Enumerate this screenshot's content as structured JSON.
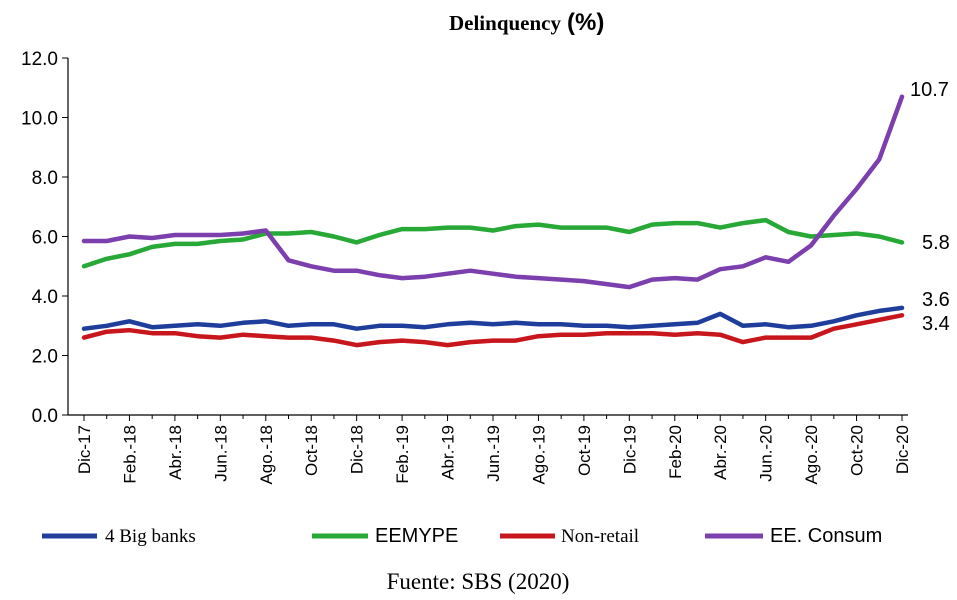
{
  "chart_data": {
    "type": "line",
    "title": "Delinquency",
    "title_unit": "(%)",
    "ylabel": "",
    "xlabel": "",
    "ylim": [
      0,
      12
    ],
    "y_ticks": [
      "0.0",
      "2.0",
      "4.0",
      "6.0",
      "8.0",
      "10.0",
      "12.0"
    ],
    "x_tick_labels": [
      "Dic-17",
      "Feb.-18",
      "Abr.-18",
      "Jun.-18",
      "Ago.-18",
      "Oct-18",
      "Dic-18",
      "Feb.-19",
      "Abr.-19",
      "Jun.-19",
      "Ago.-19",
      "Oct-19",
      "Dic-19",
      "Feb-20",
      "Abr.-20",
      "Jun.-20",
      "Ago.-20",
      "Oct-20",
      "Dic-20"
    ],
    "categories": [
      "Dic-17",
      "Ene-18",
      "Feb-18",
      "Mar-18",
      "Abr-18",
      "May-18",
      "Jun-18",
      "Jul-18",
      "Ago-18",
      "Set-18",
      "Oct-18",
      "Nov-18",
      "Dic-18",
      "Ene-19",
      "Feb-19",
      "Mar-19",
      "Abr-19",
      "May-19",
      "Jun-19",
      "Jul-19",
      "Ago-19",
      "Set-19",
      "Oct-19",
      "Nov-19",
      "Dic-19",
      "Ene-20",
      "Feb-20",
      "Mar-20",
      "Abr-20",
      "May-20",
      "Jun-20",
      "Jul-20",
      "Ago-20",
      "Set-20",
      "Oct-20",
      "Nov-20",
      "Dic-20"
    ],
    "series": [
      {
        "name": "4 Big banks",
        "color": "#1f3e9c",
        "values": [
          2.9,
          3.0,
          3.15,
          2.95,
          3.0,
          3.05,
          3.0,
          3.1,
          3.15,
          3.0,
          3.05,
          3.05,
          2.9,
          3.0,
          3.0,
          2.95,
          3.05,
          3.1,
          3.05,
          3.1,
          3.05,
          3.05,
          3.0,
          3.0,
          2.95,
          3.0,
          3.05,
          3.1,
          3.4,
          3.0,
          3.05,
          2.95,
          3.0,
          3.15,
          3.35,
          3.5,
          3.6
        ]
      },
      {
        "name": "EEMYPE",
        "color": "#27a837",
        "values": [
          5.0,
          5.25,
          5.4,
          5.65,
          5.75,
          5.75,
          5.85,
          5.9,
          6.1,
          6.1,
          6.15,
          6.0,
          5.8,
          6.05,
          6.25,
          6.25,
          6.3,
          6.3,
          6.2,
          6.35,
          6.4,
          6.3,
          6.3,
          6.3,
          6.15,
          6.4,
          6.45,
          6.45,
          6.3,
          6.45,
          6.55,
          6.15,
          6.0,
          6.05,
          6.1,
          6.0,
          5.8
        ]
      },
      {
        "name": "Non-retail",
        "color": "#c8161d",
        "values": [
          2.6,
          2.8,
          2.85,
          2.75,
          2.75,
          2.65,
          2.6,
          2.7,
          2.65,
          2.6,
          2.6,
          2.5,
          2.35,
          2.45,
          2.5,
          2.45,
          2.35,
          2.45,
          2.5,
          2.5,
          2.65,
          2.7,
          2.7,
          2.75,
          2.75,
          2.75,
          2.7,
          2.75,
          2.7,
          2.45,
          2.6,
          2.6,
          2.6,
          2.9,
          3.05,
          3.2,
          3.35
        ]
      },
      {
        "name": "EE. Consum",
        "color": "#7b3fae",
        "values": [
          5.85,
          5.85,
          6.0,
          5.95,
          6.05,
          6.05,
          6.05,
          6.1,
          6.2,
          5.2,
          5.0,
          4.85,
          4.85,
          4.7,
          4.6,
          4.65,
          4.75,
          4.85,
          4.75,
          4.65,
          4.6,
          4.55,
          4.5,
          4.4,
          4.3,
          4.55,
          4.6,
          4.55,
          4.9,
          5.0,
          5.3,
          5.15,
          5.7,
          6.7,
          7.6,
          8.6,
          10.7
        ]
      }
    ],
    "annotations": [
      "10.7",
      "5.8",
      "3.6",
      "3.4"
    ],
    "legend_position": "bottom",
    "legend": [
      "4 Big banks",
      "EEMYPE",
      "Non-retail",
      "EE. Consum"
    ],
    "source": "Fuente: SBS (2020)"
  }
}
